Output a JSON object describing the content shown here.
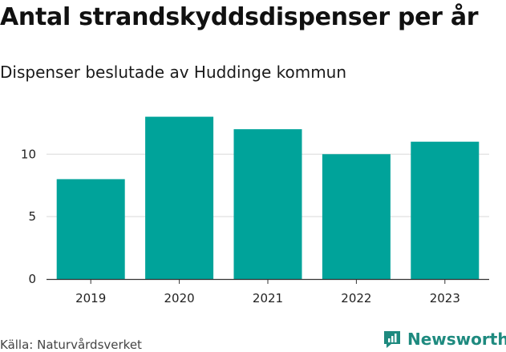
{
  "title": "Antal strandskyddsdispenser per år",
  "subtitle": "Dispenser beslutade av Huddinge kommun",
  "source": "Källa: Naturvårdsverket",
  "brand": "Newsworthy",
  "colors": {
    "bar": "#00a39a",
    "grid": "#d9d9d9",
    "axis": "#333333",
    "brand": "#1e8a7f"
  },
  "chart_data": {
    "type": "bar",
    "title": "Antal strandskyddsdispenser per år",
    "subtitle": "Dispenser beslutade av Huddinge kommun",
    "categories": [
      "2019",
      "2020",
      "2021",
      "2022",
      "2023"
    ],
    "values": [
      8,
      13,
      12,
      10,
      11
    ],
    "xlabel": "",
    "ylabel": "",
    "ylim": [
      0,
      14
    ],
    "yticks": [
      0,
      5,
      10
    ],
    "grid": true,
    "legend": "none"
  }
}
